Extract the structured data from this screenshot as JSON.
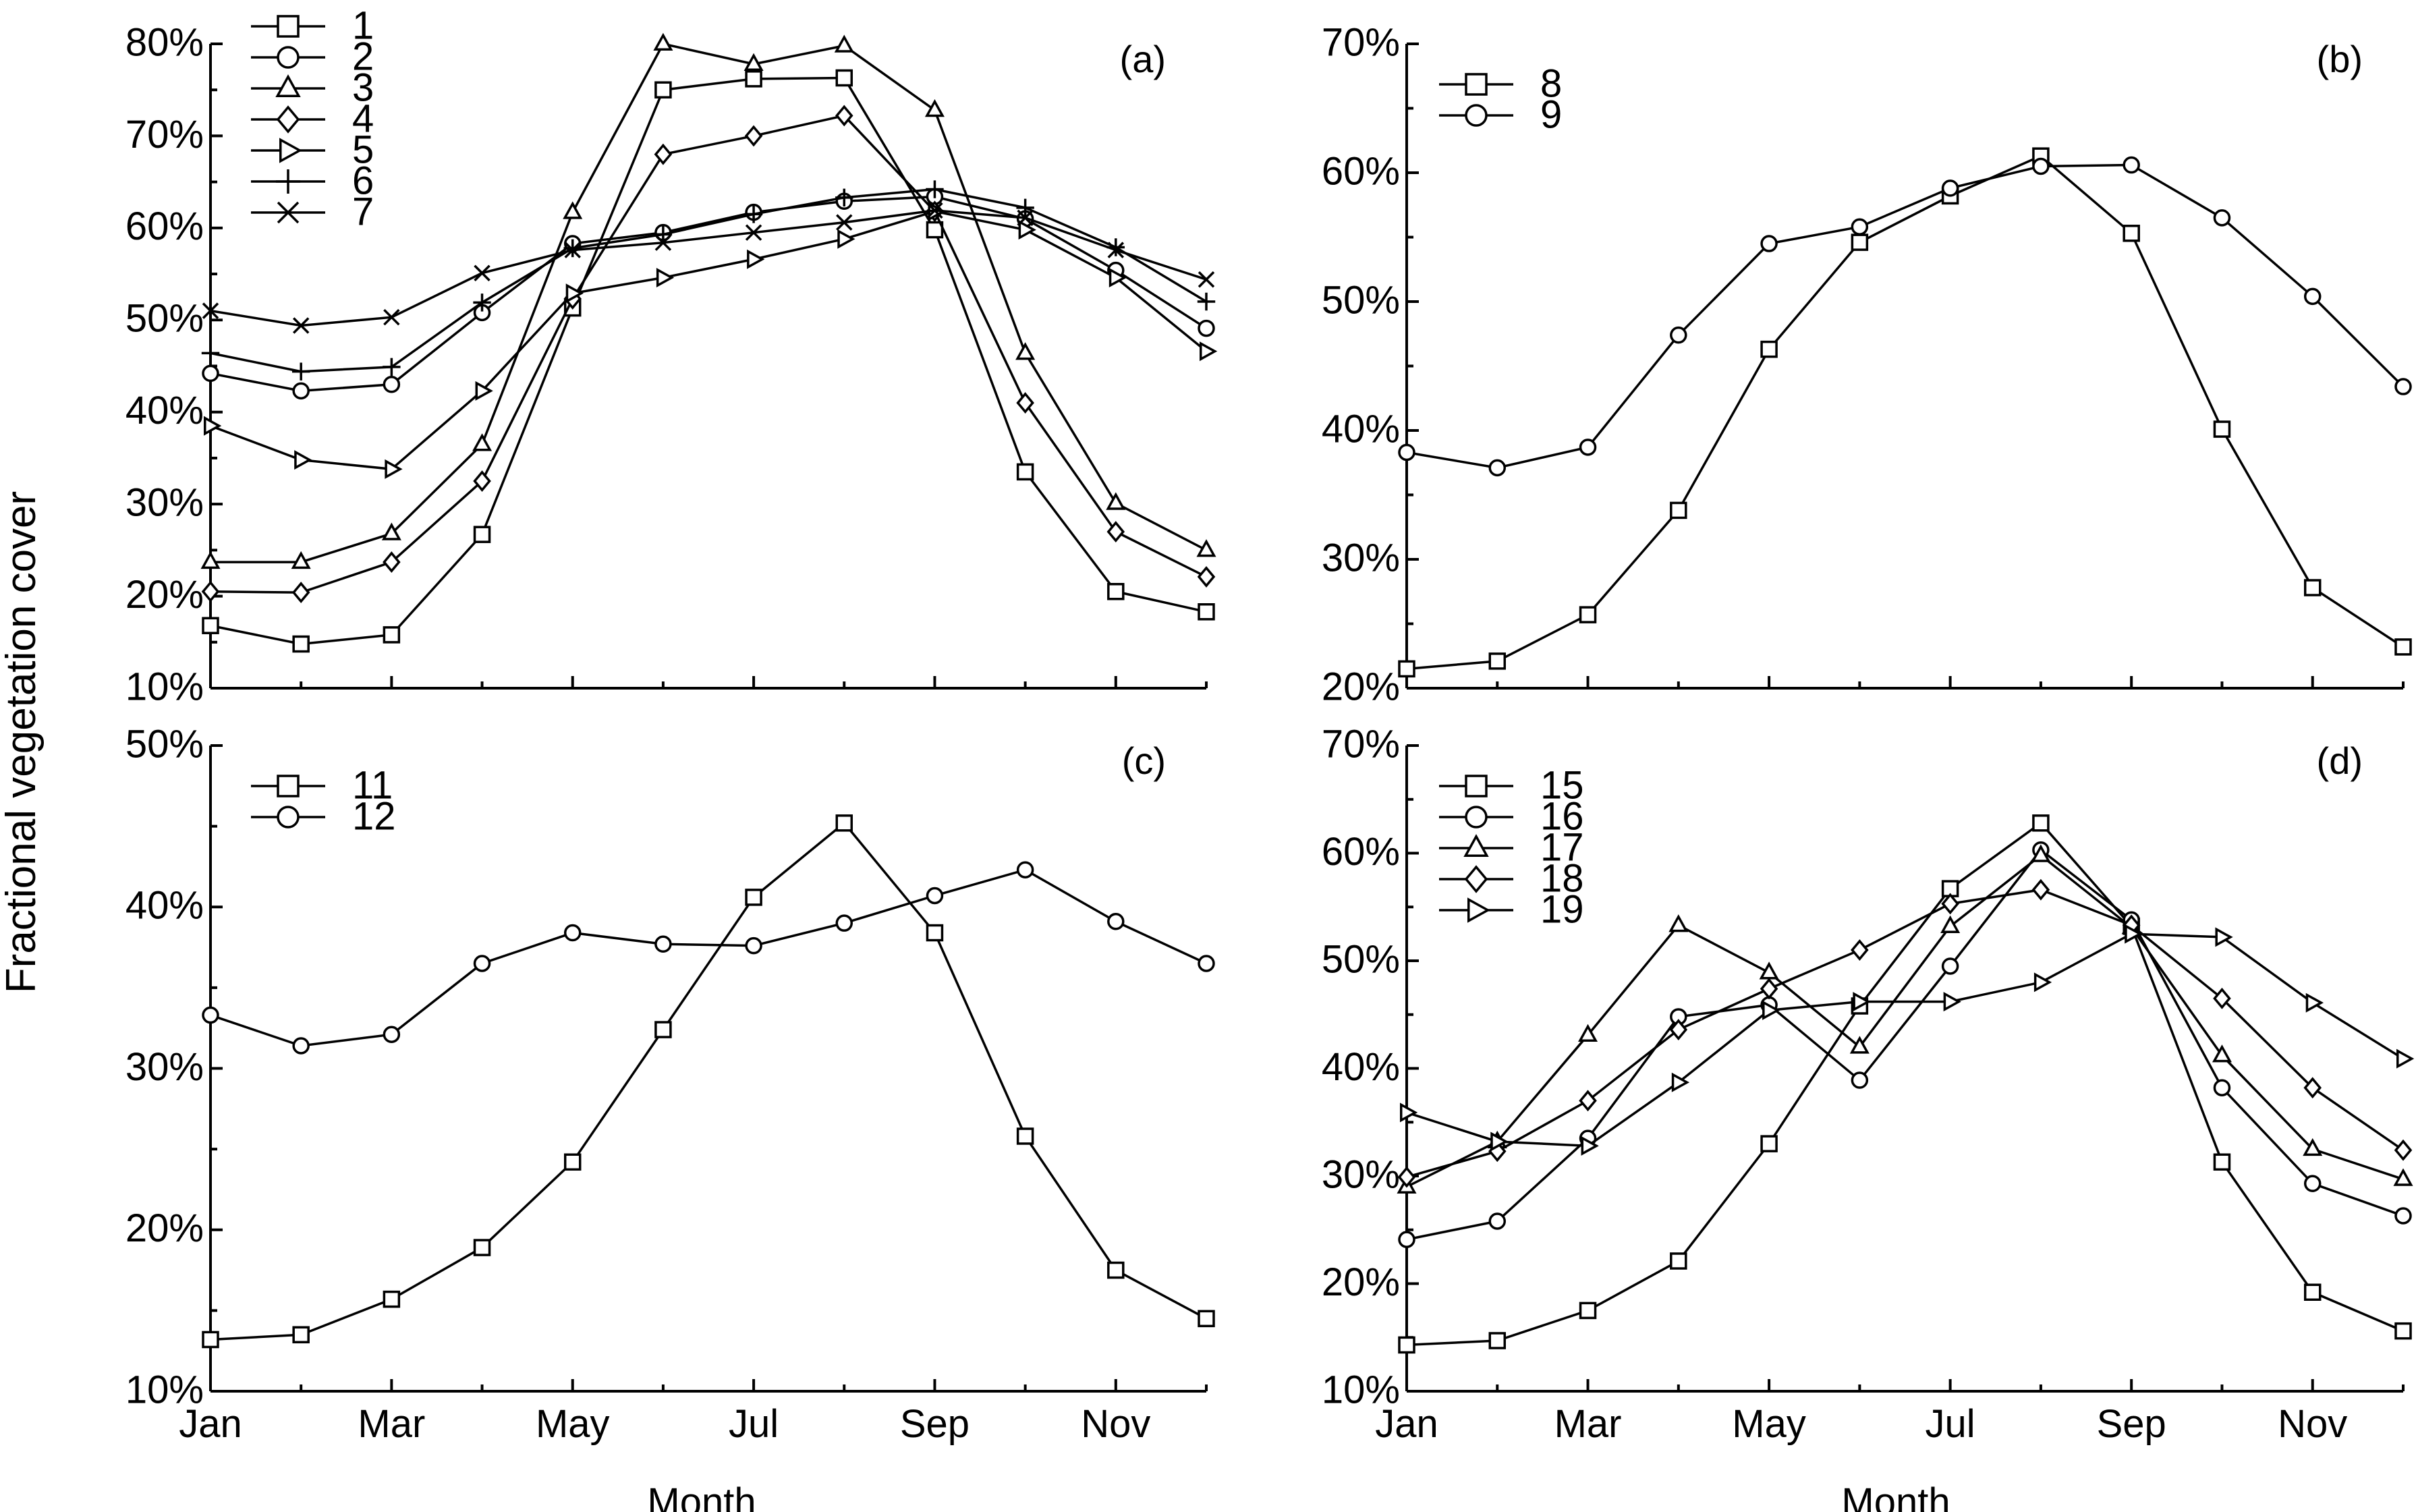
{
  "figure": {
    "ylabel": "Fractional vegetation cover",
    "xlabel": "Month",
    "x_tick_labels": [
      "Jan",
      "Mar",
      "May",
      "Jul",
      "Sep",
      "Nov"
    ]
  },
  "chart_data": [
    {
      "type": "line",
      "panel_label": "(a)",
      "x": [
        1,
        2,
        3,
        4,
        5,
        6,
        7,
        8,
        9,
        10,
        11,
        12
      ],
      "ylim": [
        10,
        80
      ],
      "y_ticks": [
        10,
        20,
        30,
        40,
        50,
        60,
        70,
        80
      ],
      "y_tick_labels": [
        "10%",
        "20%",
        "30%",
        "40%",
        "50%",
        "60%",
        "70%",
        "80%"
      ],
      "legend_position": "top-left",
      "series": [
        {
          "name": "1",
          "marker": "square",
          "values": [
            16.8,
            14.8,
            15.8,
            26.7,
            51.3,
            75.0,
            76.2,
            76.3,
            59.8,
            33.5,
            20.5,
            18.3
          ]
        },
        {
          "name": "2",
          "marker": "circle",
          "values": [
            44.2,
            42.3,
            43.0,
            50.8,
            58.3,
            59.5,
            61.7,
            62.9,
            63.4,
            61.0,
            55.4,
            49.1
          ]
        },
        {
          "name": "3",
          "marker": "triangle-up",
          "values": [
            23.7,
            23.7,
            26.8,
            36.5,
            61.7,
            80.0,
            77.8,
            79.8,
            72.8,
            46.4,
            30.1,
            25.0
          ]
        },
        {
          "name": "4",
          "marker": "diamond",
          "values": [
            20.5,
            20.4,
            23.7,
            32.5,
            52.3,
            68.0,
            70.0,
            72.2,
            61.8,
            41.0,
            27.0,
            22.1
          ]
        },
        {
          "name": "5",
          "marker": "triangle-right",
          "values": [
            38.5,
            34.8,
            33.8,
            42.3,
            52.9,
            54.6,
            56.6,
            58.8,
            61.8,
            59.8,
            54.6,
            46.6
          ]
        },
        {
          "name": "6",
          "marker": "plus",
          "values": [
            46.4,
            44.4,
            44.9,
            51.9,
            57.8,
            59.3,
            61.5,
            63.3,
            64.2,
            62.2,
            57.9,
            52.0
          ]
        },
        {
          "name": "7",
          "marker": "x",
          "values": [
            51.0,
            49.4,
            50.3,
            55.1,
            57.6,
            58.4,
            59.5,
            60.6,
            61.9,
            61.1,
            57.6,
            54.4
          ]
        }
      ]
    },
    {
      "type": "line",
      "panel_label": "(b)",
      "x": [
        1,
        2,
        3,
        4,
        5,
        6,
        7,
        8,
        9,
        10,
        11,
        12
      ],
      "ylim": [
        20,
        70
      ],
      "y_ticks": [
        20,
        30,
        40,
        50,
        60,
        70
      ],
      "y_tick_labels": [
        "20%",
        "30%",
        "40%",
        "50%",
        "60%",
        "70%"
      ],
      "legend_position": "top-left",
      "series": [
        {
          "name": "8",
          "marker": "square",
          "values": [
            21.5,
            22.1,
            25.7,
            33.8,
            46.3,
            54.6,
            58.2,
            61.3,
            55.3,
            40.1,
            27.8,
            23.2
          ]
        },
        {
          "name": "9",
          "marker": "circle",
          "values": [
            38.3,
            37.1,
            38.7,
            47.4,
            54.5,
            55.8,
            58.8,
            60.5,
            60.6,
            56.5,
            50.4,
            43.4
          ]
        }
      ]
    },
    {
      "type": "line",
      "panel_label": "(c)",
      "x": [
        1,
        2,
        3,
        4,
        5,
        6,
        7,
        8,
        9,
        10,
        11,
        12
      ],
      "ylim": [
        10,
        50
      ],
      "y_ticks": [
        10,
        20,
        30,
        40,
        50
      ],
      "y_tick_labels": [
        "10%",
        "20%",
        "30%",
        "40%",
        "50%"
      ],
      "legend_position": "top-left",
      "series": [
        {
          "name": "11",
          "marker": "square",
          "values": [
            13.2,
            13.5,
            15.7,
            18.9,
            24.2,
            32.4,
            40.6,
            45.2,
            38.4,
            25.8,
            17.5,
            14.5
          ]
        },
        {
          "name": "12",
          "marker": "circle",
          "values": [
            33.3,
            31.4,
            32.1,
            36.5,
            38.4,
            37.7,
            37.6,
            39.0,
            40.7,
            42.3,
            39.1,
            36.5
          ]
        }
      ]
    },
    {
      "type": "line",
      "panel_label": "(d)",
      "x": [
        1,
        2,
        3,
        4,
        5,
        6,
        7,
        8,
        9,
        10,
        11,
        12
      ],
      "ylim": [
        10,
        70
      ],
      "y_ticks": [
        10,
        20,
        30,
        40,
        50,
        60,
        70
      ],
      "y_tick_labels": [
        "10%",
        "20%",
        "30%",
        "40%",
        "50%",
        "60%",
        "70%"
      ],
      "legend_position": "top-left",
      "series": [
        {
          "name": "15",
          "marker": "square",
          "values": [
            14.3,
            14.7,
            17.5,
            22.1,
            33.0,
            45.8,
            56.7,
            62.8,
            53.2,
            31.3,
            19.2,
            15.6
          ]
        },
        {
          "name": "16",
          "marker": "circle",
          "values": [
            24.1,
            25.8,
            33.5,
            44.8,
            45.9,
            38.9,
            49.5,
            60.3,
            53.8,
            38.2,
            29.3,
            26.3
          ]
        },
        {
          "name": "17",
          "marker": "triangle-up",
          "values": [
            29.0,
            33.2,
            43.1,
            53.3,
            48.9,
            42.0,
            53.2,
            59.8,
            53.1,
            41.2,
            32.5,
            29.7
          ]
        },
        {
          "name": "18",
          "marker": "diamond",
          "values": [
            29.9,
            32.3,
            37.0,
            43.6,
            47.4,
            51.0,
            55.3,
            56.6,
            53.3,
            46.5,
            38.2,
            32.4
          ]
        },
        {
          "name": "19",
          "marker": "triangle-right",
          "values": [
            35.9,
            33.2,
            32.8,
            38.7,
            45.4,
            46.2,
            46.2,
            48.0,
            52.5,
            52.2,
            46.1,
            40.9
          ]
        }
      ]
    }
  ]
}
